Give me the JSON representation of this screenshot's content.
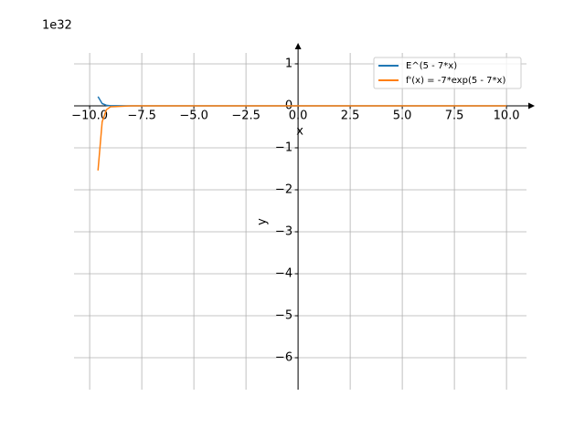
{
  "chart_data": {
    "type": "line",
    "offset_text": "1e32",
    "xlabel": "x",
    "ylabel": "y",
    "x": [
      -9.6,
      -9.4,
      -9.2,
      -9.0,
      -8,
      -6,
      -4,
      -2,
      0,
      2,
      4,
      6,
      8,
      10
    ],
    "series": [
      {
        "name": "E^(5 - 7*x)",
        "color": "#1f77b4",
        "values": [
          0.22,
          0.054,
          0.013,
          0.003,
          0,
          0,
          0,
          0,
          0,
          0,
          0,
          0,
          0,
          0
        ]
      },
      {
        "name": "f'(x) = -7*exp(5 - 7*x)",
        "color": "#ff7f0e",
        "values": [
          -1.54,
          -0.38,
          -0.094,
          -0.023,
          0,
          0,
          0,
          0,
          0,
          0,
          0,
          0,
          0,
          0
        ]
      }
    ],
    "xlim": [
      -10.75,
      10.96
    ],
    "ylim": [
      -6.76,
      1.26
    ],
    "xticks": [
      {
        "value": -10,
        "label": "−10.0"
      },
      {
        "value": -7.5,
        "label": "−7.5"
      },
      {
        "value": -5,
        "label": "−5.0"
      },
      {
        "value": -2.5,
        "label": "−2.5"
      },
      {
        "value": 0,
        "label": "0.0"
      },
      2.5,
      {
        "value": 5,
        "label": "5.0"
      },
      7.5,
      {
        "value": 10,
        "label": "10.0"
      }
    ],
    "yticks": [
      {
        "value": -6,
        "label": "−6"
      },
      {
        "value": -5,
        "label": "−5"
      },
      {
        "value": -4,
        "label": "−4"
      },
      {
        "value": -3,
        "label": "−3"
      },
      {
        "value": -2,
        "label": "−2"
      },
      {
        "value": -1,
        "label": "−1"
      },
      0,
      1
    ],
    "grid": true,
    "legend": "upper right"
  }
}
